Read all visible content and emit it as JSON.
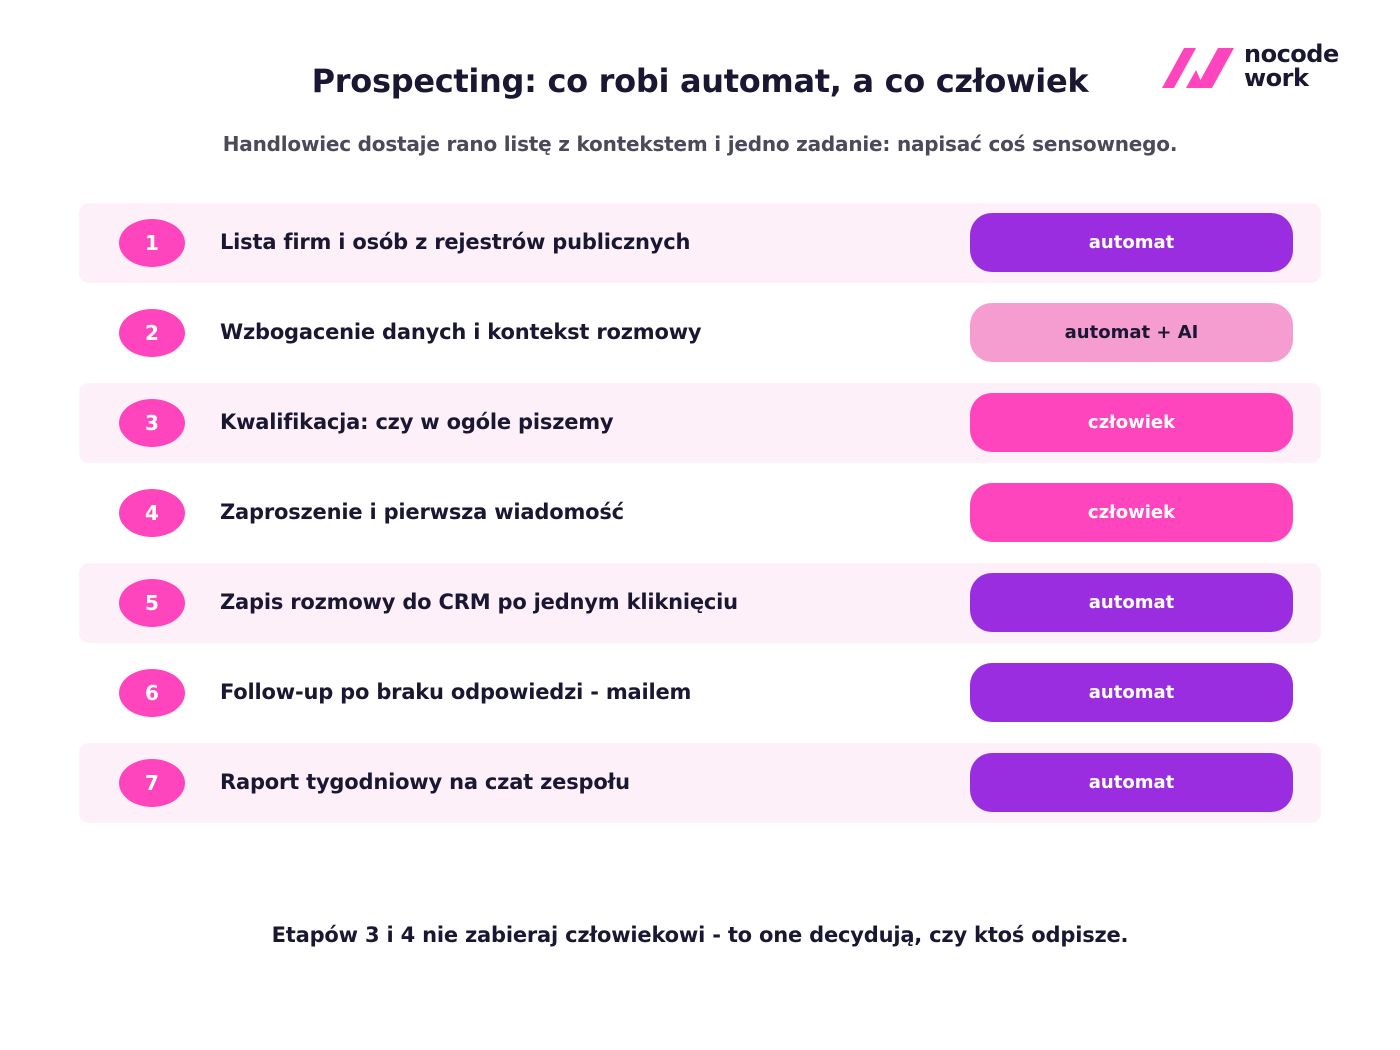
{
  "logo": {
    "icon": "nocode-work-logo-icon",
    "line1": "nocode",
    "line2": "work",
    "color": "#ff45bd"
  },
  "title": "Prospecting: co robi automat, a co człowiek",
  "subtitle": "Handlowiec dostaje rano listę z kontekstem i jedno zadanie: napisać coś sensownego.",
  "steps": [
    {
      "number": "1",
      "label": "Lista firm i osób z rejestrów publicznych",
      "badge": "automat",
      "type": "automat"
    },
    {
      "number": "2",
      "label": "Wzbogacenie danych i kontekst rozmowy",
      "badge": "automat + AI",
      "type": "automat-ai"
    },
    {
      "number": "3",
      "label": "Kwalifikacja: czy w ogóle piszemy",
      "badge": "człowiek",
      "type": "czlowiek"
    },
    {
      "number": "4",
      "label": "Zaproszenie i pierwsza wiadomość",
      "badge": "człowiek",
      "type": "czlowiek"
    },
    {
      "number": "5",
      "label": "Zapis rozmowy do CRM po jednym kliknięciu",
      "badge": "automat",
      "type": "automat"
    },
    {
      "number": "6",
      "label": "Follow-up po braku odpowiedzi - mailem",
      "badge": "automat",
      "type": "automat"
    },
    {
      "number": "7",
      "label": "Raport tygodniowy na czat zespołu",
      "badge": "automat",
      "type": "automat"
    }
  ],
  "colors": {
    "automat": "#9b2de0",
    "automat_ai": "#f59dd0",
    "czlowiek": "#ff45bd",
    "row_shade": "#fdf0f8"
  },
  "footer": "Etapów 3 i 4 nie zabieraj człowiekowi - to one decydują, czy ktoś odpisze."
}
